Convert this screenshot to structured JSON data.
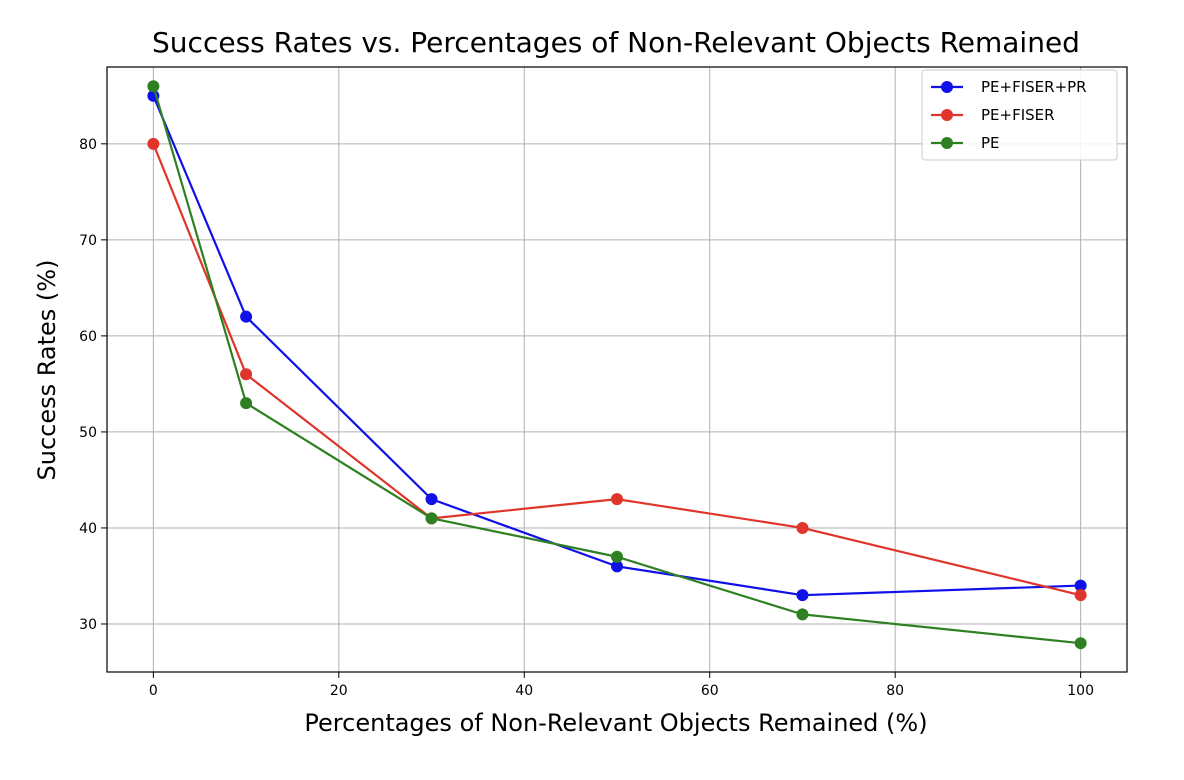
{
  "chart_data": {
    "type": "line",
    "title": "Success Rates vs. Percentages of Non-Relevant Objects Remained",
    "xlabel": "Percentages of Non-Relevant Objects Remained (%)",
    "ylabel": "Success Rates (%)",
    "x": [
      0,
      10,
      30,
      50,
      70,
      100
    ],
    "xlim": [
      -5,
      105
    ],
    "ylim": [
      25,
      88
    ],
    "xticks": [
      0,
      20,
      40,
      60,
      80,
      100
    ],
    "yticks": [
      30,
      40,
      50,
      60,
      70,
      80
    ],
    "grid": true,
    "legend_position": "top-right",
    "series": [
      {
        "name": "PE+FISER+PR",
        "color": "#1010e8",
        "values": [
          85,
          62,
          43,
          36,
          33,
          34
        ]
      },
      {
        "name": "PE+FISER",
        "color": "#e0352b",
        "values": [
          80,
          56,
          41,
          43,
          40,
          33
        ]
      },
      {
        "name": "PE",
        "color": "#2e8022",
        "values": [
          86,
          53,
          41,
          37,
          31,
          28
        ]
      }
    ]
  }
}
